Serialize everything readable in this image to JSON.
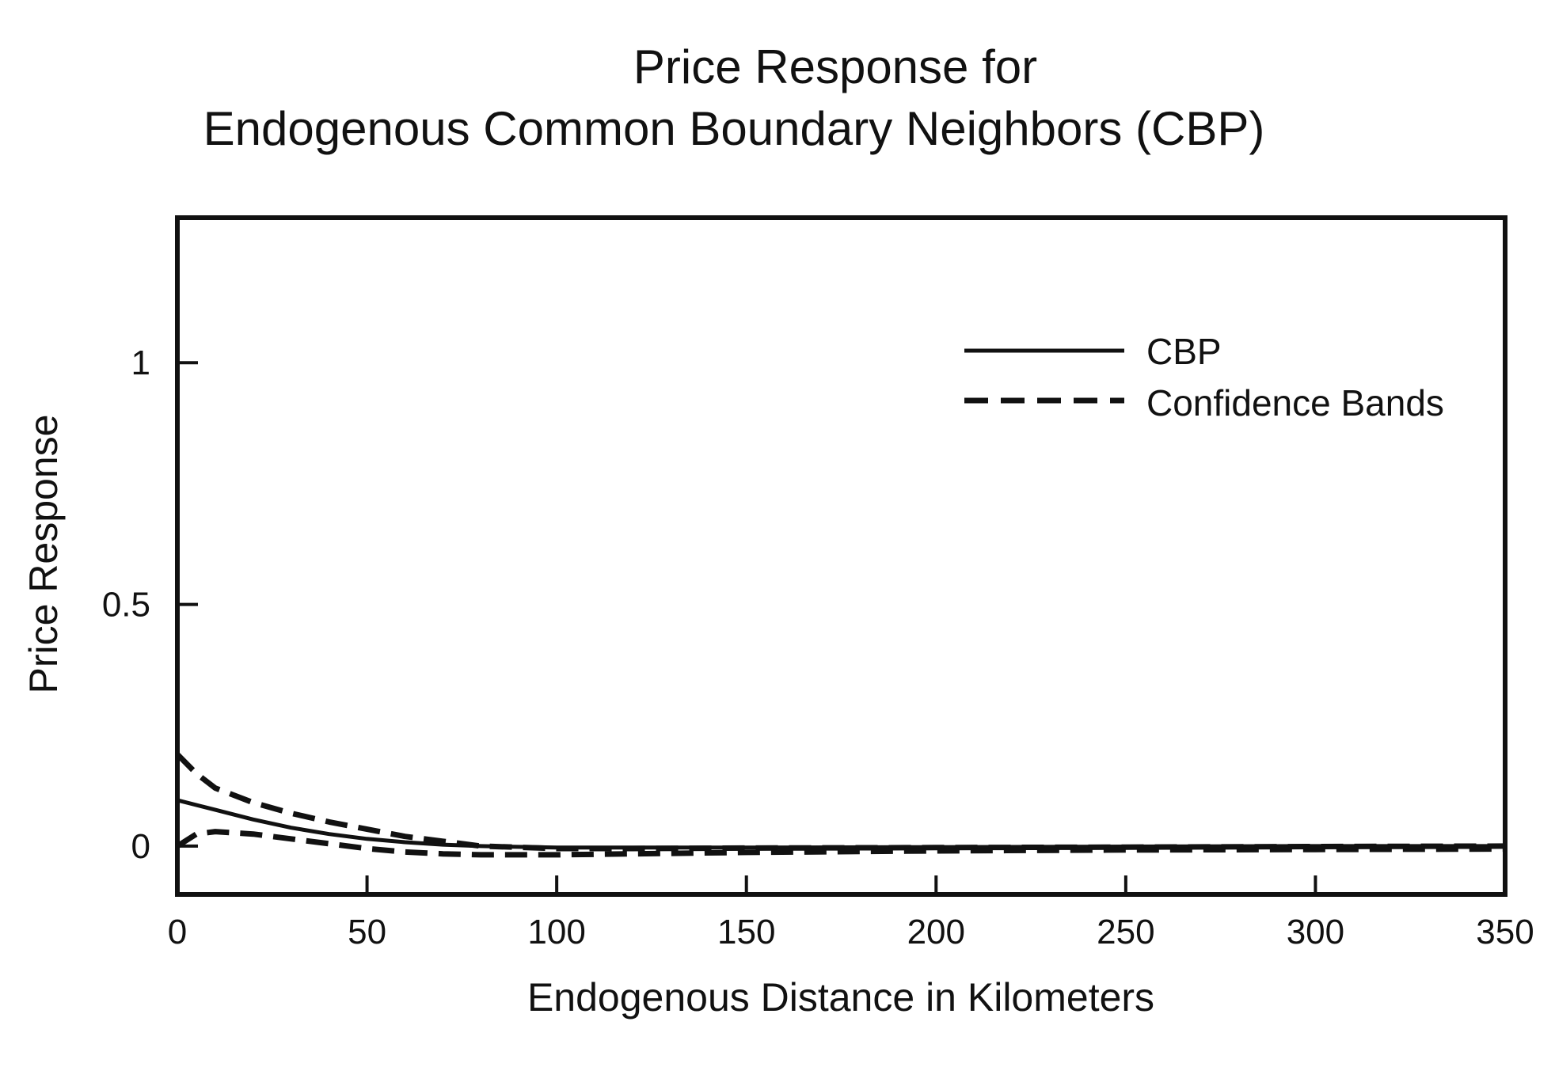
{
  "chart_data": {
    "type": "line",
    "title": [
      "Price Response for",
      "Endogenous Common Boundary Neighbors (CBP)"
    ],
    "xlabel": "Endogenous Distance in Kilometers",
    "ylabel": "Price Response",
    "xlim": [
      0,
      350
    ],
    "ylim": [
      -0.1,
      1.3
    ],
    "xticks": [
      0,
      50,
      100,
      150,
      200,
      250,
      300,
      350
    ],
    "xtick_labels": [
      "0",
      "50",
      "100",
      "150",
      "200",
      "250",
      "300",
      "350"
    ],
    "yticks": [
      0,
      0.5,
      1
    ],
    "ytick_labels": [
      "0",
      "0.5",
      "1"
    ],
    "grid": false,
    "legend": {
      "position": "top-right",
      "entries": [
        {
          "label": "CBP",
          "style": "solid"
        },
        {
          "label": "Confidence Bands",
          "style": "dashed"
        }
      ]
    },
    "series": [
      {
        "name": "CBP",
        "style": "solid",
        "x": [
          0,
          10,
          20,
          30,
          40,
          50,
          60,
          70,
          80,
          100,
          150,
          200,
          250,
          300,
          350
        ],
        "y": [
          0.095,
          0.075,
          0.055,
          0.038,
          0.025,
          0.015,
          0.008,
          0.003,
          0.0,
          -0.003,
          -0.003,
          -0.002,
          -0.001,
          0.0,
          0.0
        ]
      },
      {
        "name": "Confidence Bands",
        "style": "dashed",
        "x": [
          0,
          5,
          10,
          20,
          30,
          40,
          50,
          60,
          70,
          80,
          100,
          120,
          150,
          200,
          250,
          300,
          350
        ],
        "y": [
          0.19,
          0.15,
          0.12,
          0.09,
          0.068,
          0.05,
          0.035,
          0.02,
          0.01,
          0.0,
          -0.005,
          -0.005,
          -0.004,
          -0.003,
          -0.002,
          -0.001,
          0.0
        ]
      },
      {
        "name": "Confidence Bands",
        "style": "dashed",
        "x": [
          0,
          5,
          10,
          20,
          30,
          40,
          50,
          60,
          70,
          80,
          100,
          120,
          150,
          200,
          250,
          300,
          350
        ],
        "y": [
          0.0,
          0.025,
          0.03,
          0.025,
          0.015,
          0.005,
          -0.005,
          -0.012,
          -0.016,
          -0.018,
          -0.018,
          -0.016,
          -0.013,
          -0.01,
          -0.008,
          -0.007,
          -0.006
        ]
      }
    ]
  }
}
